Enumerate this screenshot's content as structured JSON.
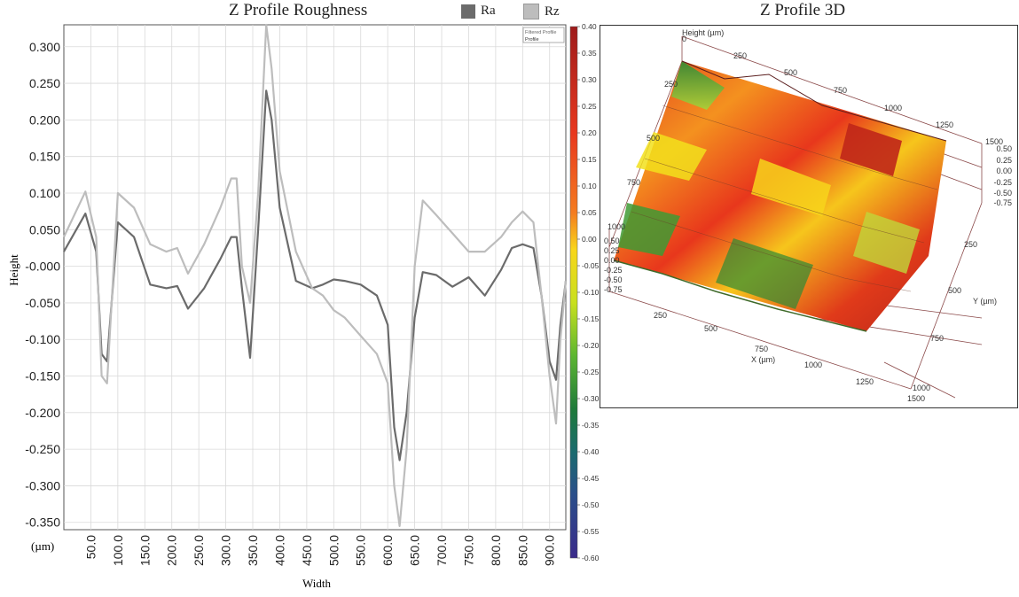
{
  "left_panel": {
    "title": "Z Profile Roughness",
    "legend": [
      {
        "label": "Ra",
        "color": "#6b6b6b"
      },
      {
        "label": "Rz",
        "color": "#bdbdbd"
      }
    ],
    "inset_legend": [
      "Filtered Profile",
      "Profile"
    ]
  },
  "right_panel": {
    "title": "Z Profile 3D",
    "height_axis_label": "Height (µm)",
    "x_axis_label": "X (µm)",
    "y_axis_label": "Y (µm)",
    "height_ticks_top": [
      "0.50",
      "0.25",
      "0.00",
      "-0.25",
      "-0.50",
      "-0.75"
    ],
    "height_ticks_left": [
      "0.50",
      "0.25",
      "0.00",
      "-0.25",
      "-0.50",
      "-0.75"
    ],
    "x_ticks": [
      "250",
      "500",
      "750",
      "1000",
      "1250",
      "1500"
    ],
    "top_x_ticks": [
      "0",
      "250",
      "500",
      "750",
      "1000",
      "1250",
      "1500"
    ],
    "y_ticks": [
      "250",
      "500",
      "750",
      "1000"
    ],
    "left_side_ticks": [
      "250",
      "500",
      "750",
      "1000"
    ]
  },
  "colorbar": {
    "ticks": [
      "0.40",
      "0.35",
      "0.30",
      "0.25",
      "0.20",
      "0.15",
      "0.10",
      "0.05",
      "0.00",
      "-0.05",
      "-0.10",
      "-0.15",
      "-0.20",
      "-0.25",
      "-0.30",
      "-0.35",
      "-0.40",
      "-0.45",
      "-0.50",
      "-0.55",
      "-0.60"
    ],
    "range": [
      -0.6,
      0.4
    ]
  },
  "chart_data": {
    "type": "line",
    "title": "Z Profile Roughness",
    "xlabel": "Width",
    "ylabel": "Height",
    "x_unit_label": "(µm)",
    "xlim": [
      0,
      930
    ],
    "ylim": [
      -0.36,
      0.33
    ],
    "x_ticks": [
      "50.0",
      "100.0",
      "150.0",
      "200.0",
      "250.0",
      "300.0",
      "350.0",
      "400.0",
      "450.0",
      "500.0",
      "550.0",
      "600.0",
      "650.0",
      "700.0",
      "750.0",
      "800.0",
      "850.0",
      "900.0"
    ],
    "y_ticks": [
      "0.300",
      "0.250",
      "0.200",
      "0.150",
      "0.100",
      "0.050",
      "-0.000",
      "-0.050",
      "-0.100",
      "-0.150",
      "-0.200",
      "-0.250",
      "-0.300",
      "-0.350"
    ],
    "grid": true,
    "series": [
      {
        "name": "Ra",
        "color": "#6b6b6b",
        "x": [
          0,
          40,
          60,
          70,
          80,
          100,
          130,
          160,
          190,
          210,
          230,
          260,
          290,
          310,
          320,
          330,
          345,
          360,
          375,
          385,
          400,
          430,
          460,
          480,
          500,
          520,
          550,
          580,
          600,
          612,
          622,
          635,
          650,
          665,
          690,
          720,
          750,
          780,
          810,
          830,
          850,
          870,
          885,
          900,
          912,
          920,
          930
        ],
        "y": [
          0.02,
          0.072,
          0.02,
          -0.12,
          -0.13,
          0.06,
          0.04,
          -0.025,
          -0.03,
          -0.027,
          -0.058,
          -0.03,
          0.01,
          0.04,
          0.04,
          -0.03,
          -0.125,
          0.05,
          0.24,
          0.2,
          0.08,
          -0.02,
          -0.03,
          -0.025,
          -0.018,
          -0.02,
          -0.025,
          -0.04,
          -0.08,
          -0.22,
          -0.265,
          -0.2,
          -0.07,
          -0.008,
          -0.012,
          -0.028,
          -0.015,
          -0.04,
          -0.005,
          0.025,
          0.03,
          0.025,
          -0.04,
          -0.13,
          -0.155,
          -0.08,
          -0.02
        ]
      },
      {
        "name": "Rz",
        "color": "#bdbdbd",
        "x": [
          0,
          40,
          60,
          70,
          80,
          100,
          130,
          160,
          190,
          210,
          230,
          260,
          290,
          310,
          320,
          330,
          345,
          360,
          375,
          385,
          400,
          430,
          460,
          480,
          500,
          520,
          550,
          580,
          600,
          612,
          622,
          635,
          650,
          665,
          690,
          720,
          750,
          780,
          810,
          830,
          850,
          870,
          885,
          900,
          912,
          920,
          930
        ],
        "y": [
          0.04,
          0.102,
          0.04,
          -0.15,
          -0.16,
          0.1,
          0.08,
          0.03,
          0.02,
          0.025,
          -0.01,
          0.03,
          0.08,
          0.12,
          0.12,
          0.0,
          -0.05,
          0.1,
          0.33,
          0.27,
          0.13,
          0.02,
          -0.03,
          -0.04,
          -0.06,
          -0.07,
          -0.095,
          -0.12,
          -0.16,
          -0.3,
          -0.355,
          -0.25,
          0.0,
          0.09,
          0.07,
          0.045,
          0.02,
          0.02,
          0.04,
          0.06,
          0.075,
          0.06,
          -0.04,
          -0.15,
          -0.215,
          -0.1,
          -0.02
        ]
      }
    ]
  }
}
